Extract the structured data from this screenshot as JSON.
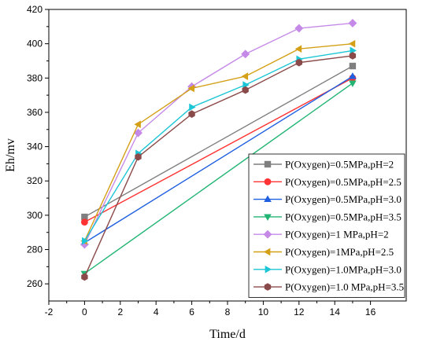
{
  "chart_data": {
    "type": "line",
    "xlabel": "Time/d",
    "ylabel": "Eh/mv",
    "xlim": [
      -2,
      18
    ],
    "ylim": [
      250,
      420
    ],
    "xticks": [
      -2,
      0,
      2,
      4,
      6,
      8,
      10,
      12,
      14,
      16
    ],
    "yticks": [
      260,
      280,
      300,
      320,
      340,
      360,
      380,
      400,
      420
    ],
    "grid": false,
    "legend_position": "bottom-right",
    "series": [
      {
        "name": "P(Oxygen)=0.5MPa,pH=2",
        "color": "#7f7f7f",
        "marker": "square",
        "x": [
          0,
          15
        ],
        "y": [
          299,
          387
        ]
      },
      {
        "name": "P(Oxygen)=0.5MPa,pH=2.5",
        "color": "#ff3333",
        "marker": "circle",
        "x": [
          0,
          15
        ],
        "y": [
          296,
          380
        ]
      },
      {
        "name": "P(Oxygen)=0.5MPa,pH=3.0",
        "color": "#1f5fe0",
        "marker": "triangle-up",
        "x": [
          0,
          15
        ],
        "y": [
          284,
          381
        ]
      },
      {
        "name": "P(Oxygen)=0.5MPa,pH=3.5",
        "color": "#22b573",
        "marker": "triangle-down",
        "x": [
          0,
          15
        ],
        "y": [
          266,
          377
        ]
      },
      {
        "name": "P(Oxygen)=1 MPa,pH=2",
        "color": "#c58ae8",
        "marker": "diamond",
        "x": [
          0,
          3,
          6,
          9,
          12,
          15
        ],
        "y": [
          283,
          348,
          375,
          394,
          409,
          412
        ]
      },
      {
        "name": "P(Oxygen)=1MPa,pH=2.5",
        "color": "#d4a017",
        "marker": "triangle-left",
        "x": [
          0,
          3,
          6,
          9,
          12,
          15
        ],
        "y": [
          285,
          353,
          374,
          381,
          397,
          400
        ]
      },
      {
        "name": "P(Oxygen)=1.0MPa,pH=3.0",
        "color": "#1cc6d6",
        "marker": "triangle-right",
        "x": [
          0,
          3,
          6,
          9,
          12,
          15
        ],
        "y": [
          285,
          336,
          363,
          376,
          391,
          396
        ]
      },
      {
        "name": "P(Oxygen)=1.0 MPa,pH=3.5",
        "color": "#8b4a4a",
        "marker": "hexagon",
        "x": [
          0,
          3,
          6,
          9,
          12,
          15
        ],
        "y": [
          264,
          334,
          359,
          373,
          389,
          393
        ]
      }
    ]
  }
}
